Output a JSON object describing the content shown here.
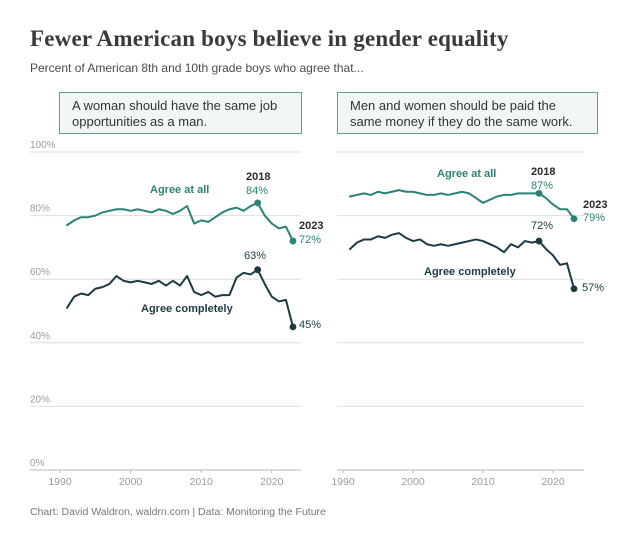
{
  "header": {
    "title": "Fewer American boys believe in gender equality",
    "subtitle": "Percent of American 8th and 10th grade boys who agree that..."
  },
  "footer": {
    "credit": "Chart: David Waldron, waldrn.com | Data: Monitoring the Future"
  },
  "colors": {
    "teal": "#2b8275",
    "dark": "#1b3a42",
    "year_label": "#2b2b2b",
    "grid": "#dedede",
    "axis": "#b9b9b9",
    "tick_label": "#9b9b9b"
  },
  "chart_data": [
    {
      "type": "line",
      "question": "A woman should have the same job opportunities as a man.",
      "x": [
        1991,
        1992,
        1993,
        1994,
        1995,
        1996,
        1997,
        1998,
        1999,
        2000,
        2001,
        2002,
        2003,
        2004,
        2005,
        2006,
        2007,
        2008,
        2009,
        2010,
        2011,
        2012,
        2013,
        2014,
        2015,
        2016,
        2017,
        2018,
        2019,
        2020,
        2021,
        2022,
        2023
      ],
      "ylim": [
        0,
        100
      ],
      "yticks": [
        "0%",
        "20%",
        "40%",
        "60%",
        "80%",
        "100%"
      ],
      "xticks": [
        1990,
        2000,
        2010,
        2020
      ],
      "grid": true,
      "series": [
        {
          "name": "Agree at all",
          "color": "teal",
          "values": [
            77,
            78.5,
            79.5,
            79.5,
            80,
            81,
            81.5,
            82,
            82,
            81.5,
            82,
            81.5,
            81,
            82,
            81.5,
            80.5,
            81.5,
            83,
            77.5,
            78.5,
            78,
            79.5,
            81,
            82,
            82.5,
            81.5,
            83,
            84,
            80,
            77.5,
            76,
            76.5,
            72
          ]
        },
        {
          "name": "Agree completely",
          "color": "dark",
          "values": [
            51,
            54.5,
            55.5,
            55,
            57,
            57.5,
            58.5,
            61,
            59.5,
            59,
            59.5,
            59,
            58.5,
            59.5,
            58,
            59.5,
            58,
            61,
            56,
            55,
            56,
            54.5,
            55,
            55,
            60.5,
            62,
            61.5,
            63,
            58.5,
            54.5,
            53,
            53.5,
            45
          ]
        }
      ],
      "callouts": [
        {
          "series": 0,
          "year": 2018,
          "value": 84,
          "year_label": "2018",
          "label": "84%"
        },
        {
          "series": 0,
          "year": 2023,
          "value": 72,
          "year_label": "2023",
          "label": "72%"
        },
        {
          "series": 1,
          "year": 2018,
          "value": 63,
          "label": "63%"
        },
        {
          "series": 1,
          "year": 2023,
          "value": 45,
          "label": "45%"
        }
      ]
    },
    {
      "type": "line",
      "question": "Men and women should be paid the same money if they do the same work.",
      "x": [
        1991,
        1992,
        1993,
        1994,
        1995,
        1996,
        1997,
        1998,
        1999,
        2000,
        2001,
        2002,
        2003,
        2004,
        2005,
        2006,
        2007,
        2008,
        2009,
        2010,
        2011,
        2012,
        2013,
        2014,
        2015,
        2016,
        2017,
        2018,
        2019,
        2020,
        2021,
        2022,
        2023
      ],
      "ylim": [
        0,
        100
      ],
      "yticks": [],
      "xticks": [
        1990,
        2000,
        2010,
        2020
      ],
      "grid": true,
      "series": [
        {
          "name": "Agree at all",
          "color": "teal",
          "values": [
            86,
            86.5,
            87,
            86.5,
            87.5,
            87,
            87.5,
            88,
            87.5,
            87.5,
            87,
            86.5,
            86.5,
            87,
            86.5,
            87,
            87.5,
            87,
            85.5,
            84,
            85,
            86,
            86.5,
            86.5,
            87,
            87,
            87,
            87,
            85.5,
            83.5,
            82,
            82,
            79
          ]
        },
        {
          "name": "Agree completely",
          "color": "dark",
          "values": [
            69.5,
            71.5,
            72.5,
            72.5,
            73.5,
            73,
            74,
            74.5,
            73,
            72,
            72.5,
            71,
            70.5,
            71,
            70.5,
            71,
            71.5,
            72,
            72.5,
            72,
            71,
            70,
            68.5,
            71,
            70,
            72,
            71.5,
            72,
            69.5,
            67.5,
            64.5,
            65,
            57
          ]
        }
      ],
      "callouts": [
        {
          "series": 0,
          "year": 2018,
          "value": 87,
          "year_label": "2018",
          "label": "87%"
        },
        {
          "series": 0,
          "year": 2023,
          "value": 79,
          "year_label": "2023",
          "label": "79%"
        },
        {
          "series": 1,
          "year": 2018,
          "value": 72,
          "label": "72%"
        },
        {
          "series": 1,
          "year": 2023,
          "value": 57,
          "label": "57%"
        }
      ]
    }
  ]
}
